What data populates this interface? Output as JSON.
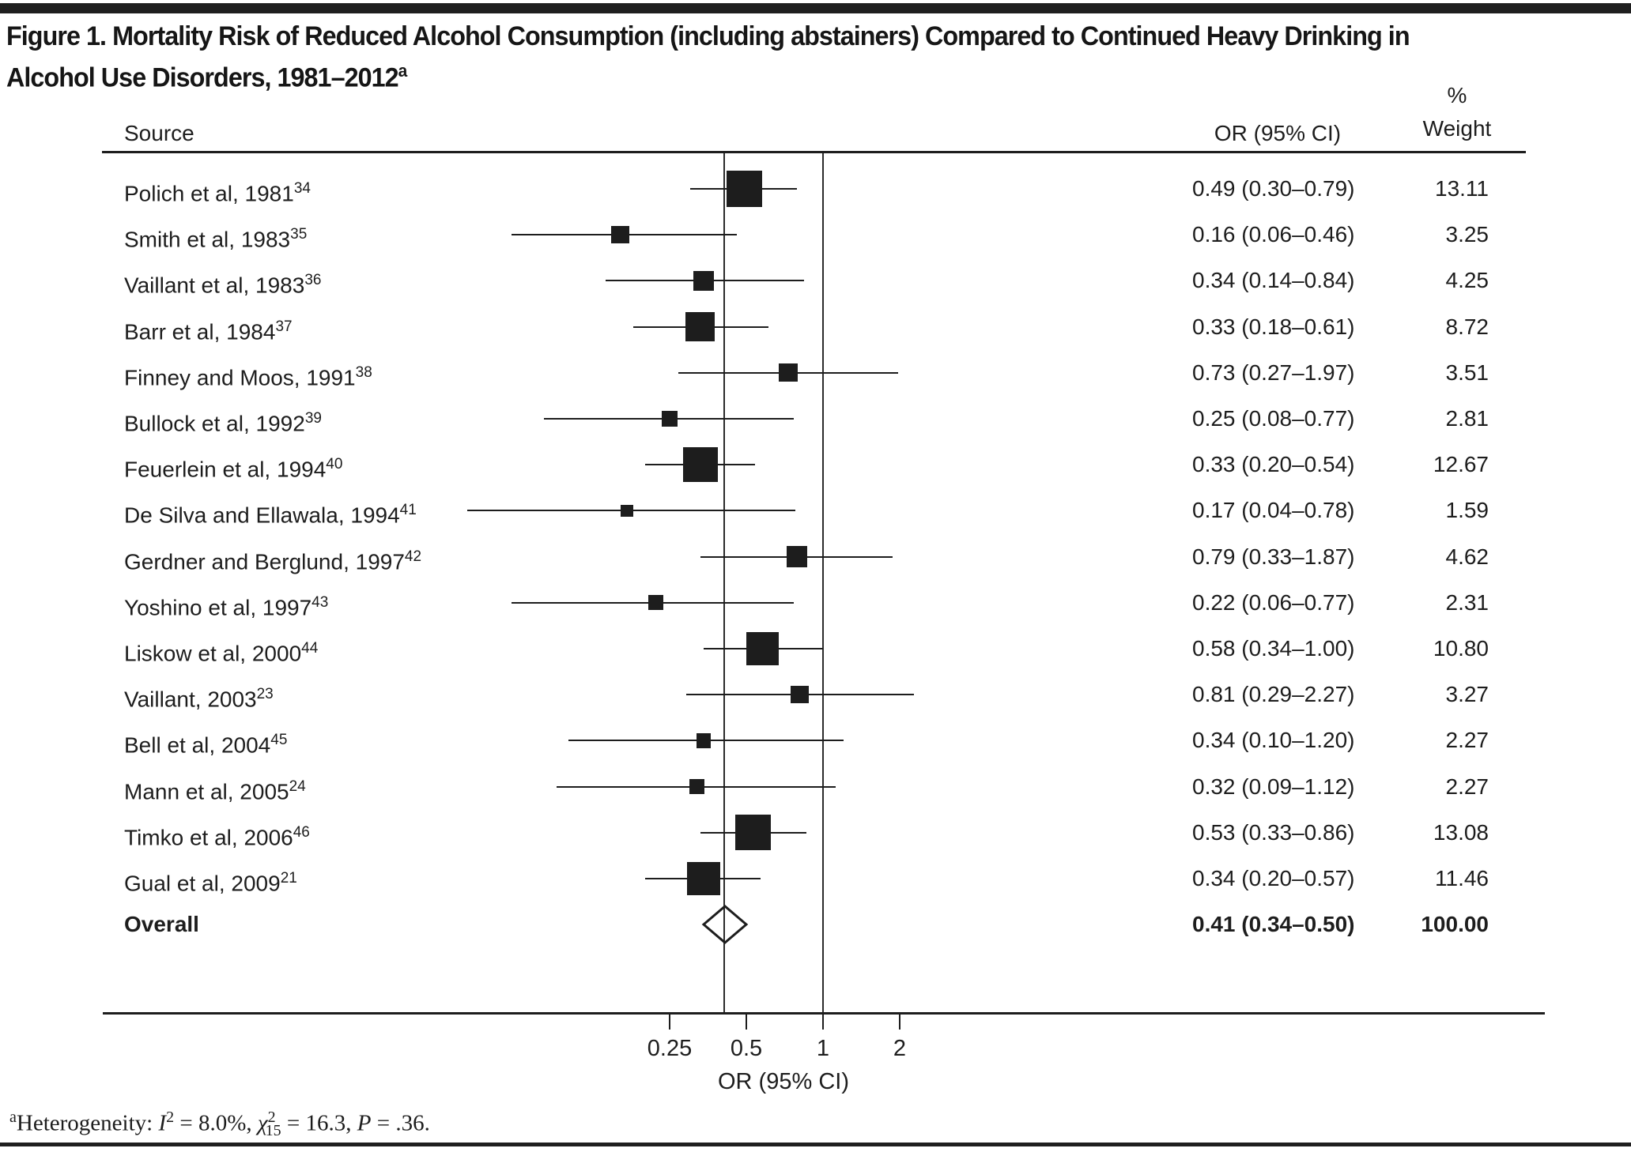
{
  "title": {
    "line1": "Figure 1. Mortality Risk of Reduced Alcohol Consumption (including abstainers) Compared to Continued Heavy Drinking in",
    "line2": "Alcohol Use Disorders, 1981–2012",
    "line2_sup": "a"
  },
  "table_headers": {
    "source": "Source",
    "or": "OR (95% CI)",
    "weight_percent": "%",
    "weight": "Weight"
  },
  "chart_data": {
    "type": "forest",
    "x_scale": "log2",
    "or_axis": {
      "label": "OR (95% CI)",
      "ticks": [
        0.25,
        0.5,
        1,
        2
      ],
      "tick_labels": [
        "0.25",
        "0.5",
        "1",
        "2"
      ],
      "reference_line": 1,
      "overall_line": 0.41,
      "range_shown": [
        0.04,
        2.27
      ]
    },
    "studies": [
      {
        "label": "Polich et al, 1981",
        "ref": "34",
        "or": 0.49,
        "low": 0.3,
        "high": 0.79,
        "weight": 13.11,
        "or_text": "0.49 (0.30–0.79)",
        "weight_text": "13.11"
      },
      {
        "label": "Smith et al, 1983",
        "ref": "35",
        "or": 0.16,
        "low": 0.06,
        "high": 0.46,
        "weight": 3.25,
        "or_text": "0.16 (0.06–0.46)",
        "weight_text": "3.25"
      },
      {
        "label": "Vaillant et al, 1983",
        "ref": "36",
        "or": 0.34,
        "low": 0.14,
        "high": 0.84,
        "weight": 4.25,
        "or_text": "0.34 (0.14–0.84)",
        "weight_text": "4.25"
      },
      {
        "label": "Barr et al, 1984",
        "ref": "37",
        "or": 0.33,
        "low": 0.18,
        "high": 0.61,
        "weight": 8.72,
        "or_text": "0.33 (0.18–0.61)",
        "weight_text": "8.72"
      },
      {
        "label": "Finney and Moos, 1991",
        "ref": "38",
        "or": 0.73,
        "low": 0.27,
        "high": 1.97,
        "weight": 3.51,
        "or_text": "0.73 (0.27–1.97)",
        "weight_text": "3.51"
      },
      {
        "label": "Bullock et al, 1992",
        "ref": "39",
        "or": 0.25,
        "low": 0.08,
        "high": 0.77,
        "weight": 2.81,
        "or_text": "0.25 (0.08–0.77)",
        "weight_text": "2.81"
      },
      {
        "label": "Feuerlein et al, 1994",
        "ref": "40",
        "or": 0.33,
        "low": 0.2,
        "high": 0.54,
        "weight": 12.67,
        "or_text": "0.33 (0.20–0.54)",
        "weight_text": "12.67"
      },
      {
        "label": "De Silva and Ellawala, 1994",
        "ref": "41",
        "or": 0.17,
        "low": 0.04,
        "high": 0.78,
        "weight": 1.59,
        "or_text": "0.17 (0.04–0.78)",
        "weight_text": "1.59"
      },
      {
        "label": "Gerdner and Berglund, 1997",
        "ref": "42",
        "or": 0.79,
        "low": 0.33,
        "high": 1.87,
        "weight": 4.62,
        "or_text": "0.79 (0.33–1.87)",
        "weight_text": "4.62"
      },
      {
        "label": "Yoshino et al, 1997",
        "ref": "43",
        "or": 0.22,
        "low": 0.06,
        "high": 0.77,
        "weight": 2.31,
        "or_text": "0.22 (0.06–0.77)",
        "weight_text": "2.31"
      },
      {
        "label": "Liskow et al, 2000",
        "ref": "44",
        "or": 0.58,
        "low": 0.34,
        "high": 1.0,
        "weight": 10.8,
        "or_text": "0.58 (0.34–1.00)",
        "weight_text": "10.80"
      },
      {
        "label": "Vaillant, 2003",
        "ref": "23",
        "or": 0.81,
        "low": 0.29,
        "high": 2.27,
        "weight": 3.27,
        "or_text": "0.81 (0.29–2.27)",
        "weight_text": "3.27"
      },
      {
        "label": "Bell et al, 2004",
        "ref": "45",
        "or": 0.34,
        "low": 0.1,
        "high": 1.2,
        "weight": 2.27,
        "or_text": "0.34 (0.10–1.20)",
        "weight_text": "2.27"
      },
      {
        "label": "Mann et al, 2005",
        "ref": "24",
        "or": 0.32,
        "low": 0.09,
        "high": 1.12,
        "weight": 2.27,
        "or_text": "0.32 (0.09–1.12)",
        "weight_text": "2.27"
      },
      {
        "label": "Timko et al, 2006",
        "ref": "46",
        "or": 0.53,
        "low": 0.33,
        "high": 0.86,
        "weight": 13.08,
        "or_text": "0.53 (0.33–0.86)",
        "weight_text": "13.08"
      },
      {
        "label": "Gual et al, 2009",
        "ref": "21",
        "or": 0.34,
        "low": 0.2,
        "high": 0.57,
        "weight": 11.46,
        "or_text": "0.34 (0.20–0.57)",
        "weight_text": "11.46"
      }
    ],
    "overall": {
      "label": "Overall",
      "or": 0.41,
      "low": 0.34,
      "high": 0.5,
      "or_text": "0.41 (0.34–0.50)",
      "weight_text": "100.00"
    }
  },
  "axis": {
    "title": "OR (95% CI)"
  },
  "footnote": {
    "marker": "a",
    "heterogeneity_text": "Heterogeneity: ",
    "i_symbol": "I",
    "i_exp": "2",
    "i_value": " = 8.0%, ",
    "chi_symbol": "χ",
    "chi_exp": "2",
    "chi_sub": "15",
    "chi_value": " = 16.3, ",
    "p_symbol": "P",
    "p_value": " = .36."
  },
  "colors": {
    "ink": "#1d1d1d",
    "bar": "#1f1f1f"
  }
}
